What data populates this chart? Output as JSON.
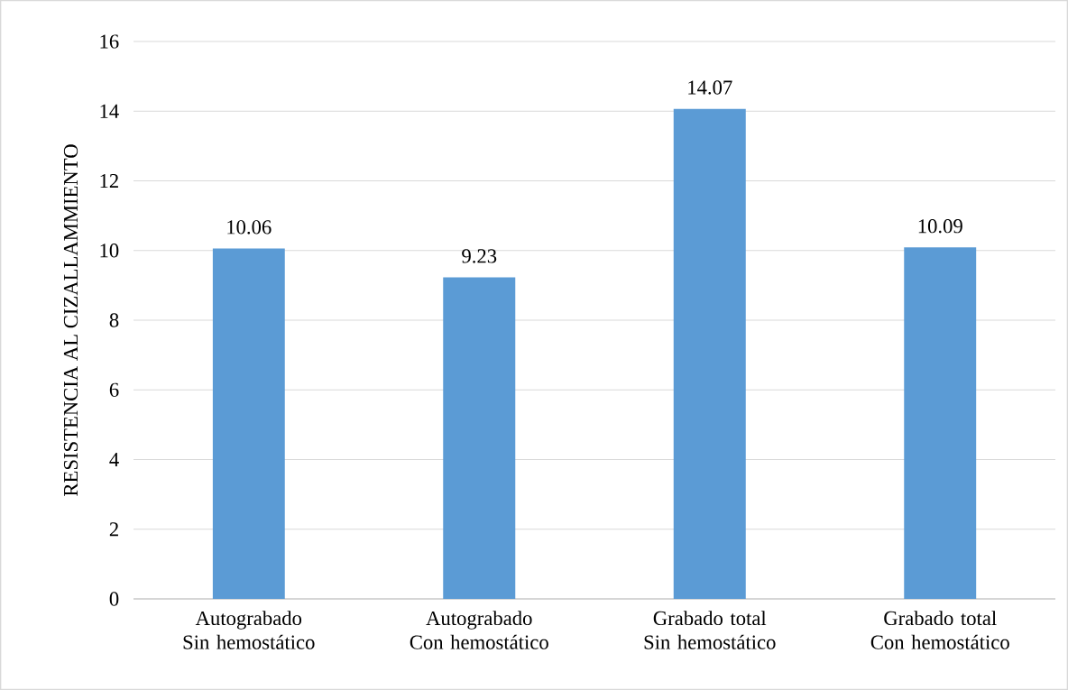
{
  "chart_data": {
    "type": "bar",
    "ylabel": "RESISTENCIA AL CIZALLAMMIENTO",
    "categories": [
      "Autograbado Sin hemostático",
      "Autograbado Con hemostático",
      "Grabado total Sin hemostático",
      "Grabado total Con hemostático"
    ],
    "values": [
      10.06,
      9.23,
      14.07,
      10.09
    ],
    "color": "#5b9bd5",
    "ylim": [
      0,
      16
    ],
    "yticks": [
      0,
      2,
      4,
      6,
      8,
      10,
      12,
      14,
      16
    ],
    "grid": "y",
    "data_labels": true
  }
}
